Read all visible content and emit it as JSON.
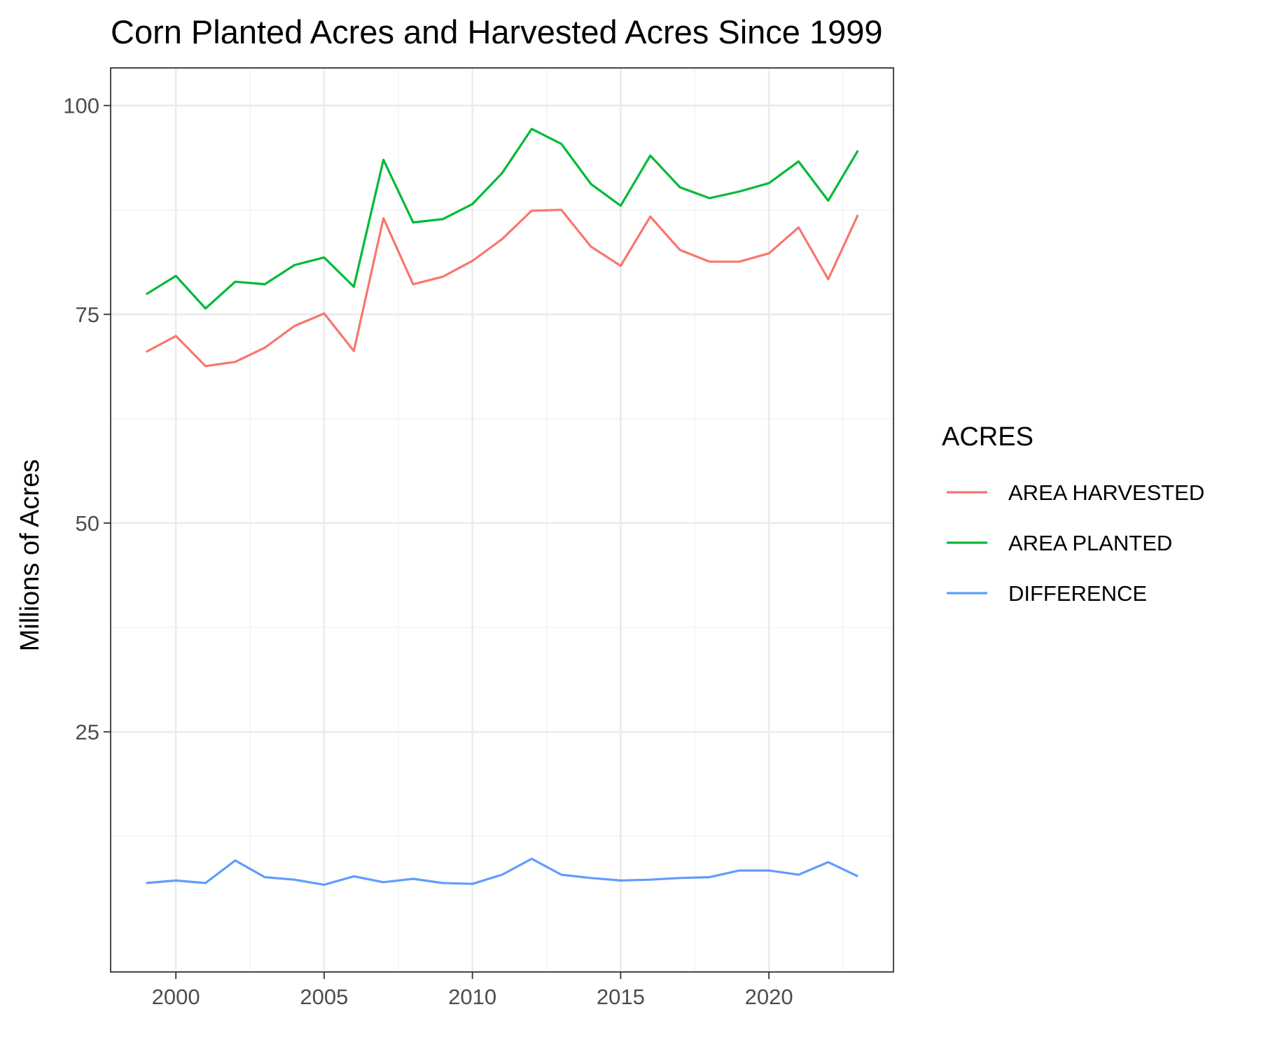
{
  "colors": {
    "area_harvested": "#F8766D",
    "area_planted": "#00BA38",
    "difference": "#619CFF",
    "grid_major": "#EBEBEB",
    "grid_minor": "#F2F2F2",
    "panel_border": "#333333",
    "tick_text": "#4D4D4D"
  },
  "chart_data": {
    "type": "line",
    "title": "Corn Planted Acres and Harvested Acres Since 1999",
    "xlabel": "",
    "ylabel": "Millions of Acres",
    "xlim": [
      1997.8,
      2024.2
    ],
    "ylim": [
      0,
      100
    ],
    "x_ticks": [
      2000,
      2005,
      2010,
      2015,
      2020
    ],
    "x_tick_labels": [
      "2000",
      "2005",
      "2010",
      "2015",
      "2020"
    ],
    "y_ticks": [
      25,
      50,
      75,
      100
    ],
    "y_tick_labels": [
      "25",
      "50",
      "75",
      "100"
    ],
    "grid": true,
    "legend_title": "ACRES",
    "legend_position": "right",
    "x": [
      1999,
      2000,
      2001,
      2002,
      2003,
      2004,
      2005,
      2006,
      2007,
      2008,
      2009,
      2010,
      2011,
      2012,
      2013,
      2014,
      2015,
      2016,
      2017,
      2018,
      2019,
      2020,
      2021,
      2022,
      2023
    ],
    "series": [
      {
        "name": "AREA HARVESTED",
        "color": "#F8766D",
        "values": [
          70.5,
          72.4,
          68.8,
          69.3,
          71.0,
          73.6,
          75.1,
          70.6,
          86.5,
          78.6,
          79.5,
          81.4,
          84.0,
          87.4,
          87.5,
          83.1,
          80.8,
          86.7,
          82.7,
          81.3,
          81.3,
          82.3,
          85.4,
          79.2,
          86.9
        ]
      },
      {
        "name": "AREA PLANTED",
        "color": "#00BA38",
        "values": [
          77.4,
          79.6,
          75.7,
          78.9,
          78.6,
          80.9,
          81.8,
          78.3,
          93.5,
          86.0,
          86.4,
          88.2,
          91.9,
          97.2,
          95.4,
          90.6,
          88.0,
          94.0,
          90.2,
          88.9,
          89.7,
          90.7,
          93.3,
          88.6,
          94.6
        ]
      },
      {
        "name": "DIFFERENCE",
        "color": "#619CFF",
        "values": [
          6.9,
          7.2,
          6.9,
          9.6,
          7.6,
          7.3,
          6.7,
          7.7,
          7.0,
          7.4,
          6.9,
          6.8,
          7.9,
          9.8,
          7.9,
          7.5,
          7.2,
          7.3,
          7.5,
          7.6,
          8.4,
          8.4,
          7.9,
          9.4,
          7.7
        ]
      }
    ]
  }
}
